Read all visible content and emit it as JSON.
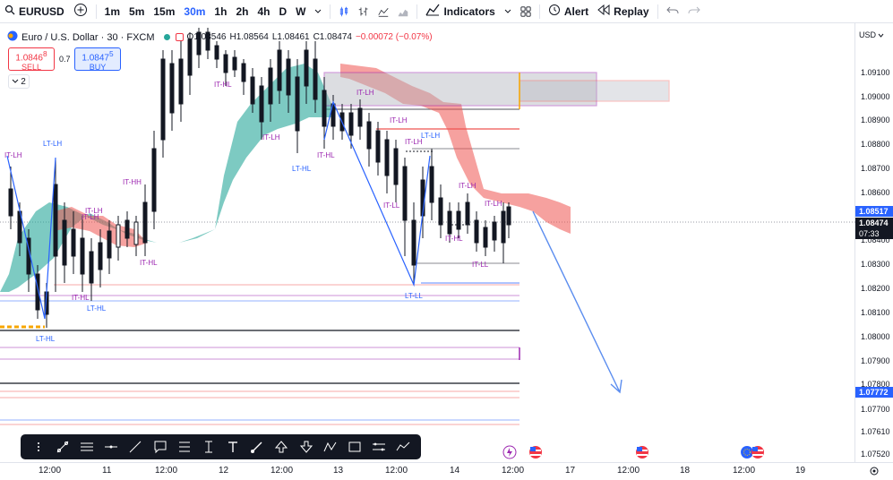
{
  "topbar": {
    "symbol": "EURUSD",
    "timeframes": [
      "1m",
      "5m",
      "15m",
      "30m",
      "1h",
      "2h",
      "4h",
      "D",
      "W"
    ],
    "active_timeframe": "30m",
    "indicators_label": "Indicators",
    "alert_label": "Alert",
    "replay_label": "Replay"
  },
  "legend": {
    "title": "Euro / U.S. Dollar · 30 · FXCM",
    "open": "O1.08546",
    "high": "H1.08564",
    "low": "L1.08461",
    "close": "C1.08474",
    "change": "−0.00072 (−0.07%)"
  },
  "trade": {
    "sell_price": "1.0846",
    "sell_sup": "8",
    "sell_label": "SELL",
    "spread": "0.7",
    "buy_price": "1.0847",
    "buy_sup": "5",
    "buy_label": "BUY",
    "collapse_count": "2"
  },
  "price_axis": {
    "currency": "USD",
    "labels": [
      "1.09100",
      "1.09000",
      "1.08900",
      "1.08800",
      "1.08700",
      "1.08600",
      "1.08400",
      "1.08300",
      "1.08200",
      "1.08100",
      "1.08000",
      "1.07900",
      "1.07800",
      "1.07700",
      "1.07610",
      "1.07520"
    ],
    "tag_blue": "1.08517",
    "tag_current": "1.08474",
    "tag_countdown": "07:33",
    "tag_target": "1.07772"
  },
  "time_axis": {
    "labels": [
      "12:00",
      "11",
      "12:00",
      "12",
      "12:00",
      "13",
      "12:00",
      "14",
      "12:00",
      "17",
      "12:00",
      "18",
      "12:00",
      "19"
    ]
  },
  "annotations": [
    "IT-LH",
    "LT-LH",
    "IT-HH",
    "IT-HL",
    "IT-HL",
    "LT-HL",
    "LT-HL",
    "IT-LH",
    "IT-HL",
    "IT-LH",
    "IT-LH",
    "IT-LH",
    "IT-LH",
    "IT-LL",
    "LT-LL",
    "IT-HL",
    "IT-LL",
    "IT-LH",
    "LT-HL",
    "IT-HL",
    "IT-LH",
    "LT-LH",
    "IT-LH"
  ],
  "colors": {
    "bull_cloud": "#26a69a",
    "bear_cloud": "#ef5350",
    "accent": "#2962ff",
    "purple": "#9c27b0"
  },
  "icons": [
    "search-icon",
    "add-symbol-icon",
    "candles-icon",
    "bars-icon",
    "area-icon",
    "indicators-icon",
    "layout-icon",
    "alert-icon",
    "replay-icon",
    "undo-icon"
  ]
}
